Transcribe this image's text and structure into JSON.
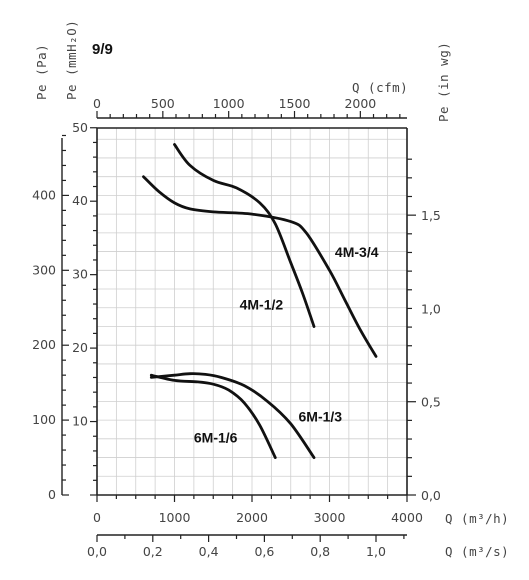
{
  "page_tag": "9/9",
  "chart_data": {
    "type": "line",
    "grid": true,
    "axes": {
      "x_flow_m3h": {
        "label": "Q (m³/h)",
        "range": [
          0,
          4000
        ],
        "ticks": [
          "0",
          "1000",
          "2000",
          "3000",
          "4000"
        ]
      },
      "x_flow_m3s": {
        "label": "Q (m³/s)",
        "range": [
          0.0,
          1.11
        ],
        "ticks": [
          "0,0",
          "0,2",
          "0,4",
          "0,6",
          "0,8",
          "1,0"
        ]
      },
      "x_flow_cfm": {
        "label": "Q (cfm)",
        "range": [
          0,
          2355
        ],
        "ticks": [
          "0",
          "500",
          "1000",
          "1500",
          "2000"
        ]
      },
      "y_pressure_pa": {
        "label": "Pe (Pa)",
        "range": [
          0,
          490
        ],
        "ticks": [
          "0",
          "100",
          "200",
          "300",
          "400"
        ]
      },
      "y_pressure_mmh2o": {
        "label": "Pe (mmH₂O)",
        "range": [
          0,
          50
        ],
        "ticks": [
          "10",
          "20",
          "30",
          "40",
          "50"
        ]
      },
      "y_pressure_inwg": {
        "label": "Pe (in wg)",
        "range": [
          0,
          1.97
        ],
        "ticks": [
          "0,0",
          "0,5",
          "1,0",
          "1,5"
        ]
      }
    },
    "series": [
      {
        "name": "4M-3/4",
        "x": [
          600,
          800,
          1000,
          1200,
          1500,
          2000,
          2500,
          2700,
          3000,
          3200,
          3400,
          3600
        ],
        "y": [
          425,
          405,
          390,
          382,
          378,
          375,
          365,
          350,
          300,
          260,
          220,
          185
        ]
      },
      {
        "name": "4M-1/2",
        "x": [
          1000,
          1200,
          1500,
          1800,
          2100,
          2300,
          2500,
          2650,
          2800
        ],
        "y": [
          468,
          440,
          420,
          410,
          390,
          362,
          310,
          270,
          225
        ]
      },
      {
        "name": "6M-1/3",
        "x": [
          700,
          1000,
          1200,
          1400,
          1600,
          1900,
          2200,
          2500,
          2800
        ],
        "y": [
          157,
          160,
          162,
          161,
          157,
          146,
          125,
          95,
          50
        ]
      },
      {
        "name": "6M-1/6",
        "x": [
          700,
          1000,
          1300,
          1500,
          1700,
          1900,
          2100,
          2300
        ],
        "y": [
          160,
          153,
          151,
          148,
          140,
          123,
          93,
          50
        ]
      }
    ],
    "labels": [
      {
        "text": "4M-3/4",
        "series": "4M-3/4"
      },
      {
        "text": "4M-1/2",
        "series": "4M-1/2"
      },
      {
        "text": "6M-1/3",
        "series": "6M-1/3"
      },
      {
        "text": "6M-1/6",
        "series": "6M-1/6"
      }
    ]
  }
}
